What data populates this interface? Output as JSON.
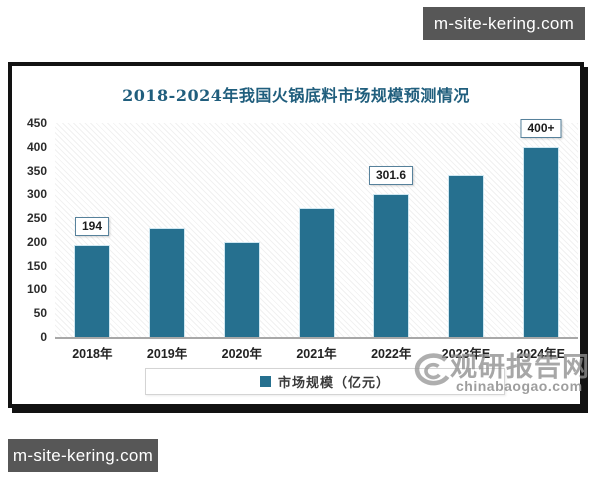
{
  "watermarks": {
    "top_right": "m-site-kering.com",
    "bottom_left": "m-site-kering.com",
    "brand_name": "观研报告网",
    "brand_site": "chinabaogao.com"
  },
  "chart": {
    "colors": {
      "bar": "#26708F",
      "title": "#205E7D",
      "callout_border": "#56819B",
      "watermark_box": "#575757"
    }
  },
  "chart_data": {
    "type": "bar",
    "title": "2018-2024年我国火锅底料市场规模预测情况",
    "categories": [
      "2018年",
      "2019年",
      "2020年",
      "2021年",
      "2022年",
      "2023年E",
      "2024年E"
    ],
    "values": [
      194,
      230,
      200,
      272,
      301.6,
      340,
      400
    ],
    "data_labels": [
      "194",
      null,
      null,
      null,
      "301.6",
      null,
      "400+"
    ],
    "series_name": "市场规模（亿元）",
    "ylabel": "",
    "xlabel": "",
    "ylim": [
      0,
      450
    ],
    "y_tick_step": 50,
    "y_ticks": [
      450,
      400,
      350,
      300,
      250,
      200,
      150,
      100,
      50,
      0
    ],
    "grid": false,
    "plot_background": "diagonal-hatch",
    "legend_position": "bottom"
  }
}
